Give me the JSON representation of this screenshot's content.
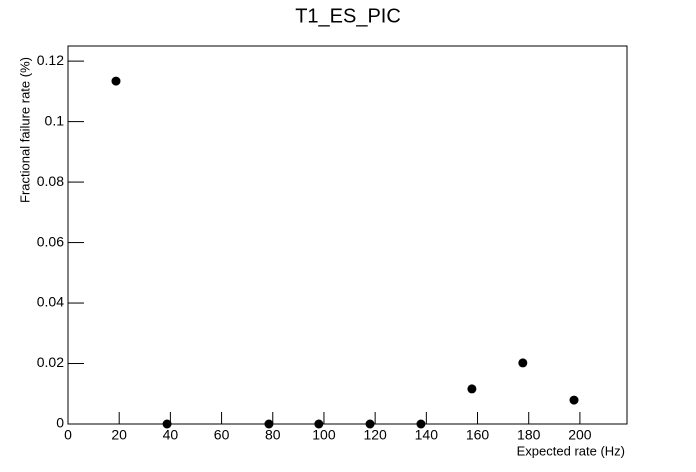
{
  "chart_data": {
    "type": "scatter",
    "title": "T1_ES_PIC",
    "x_label": "Expected rate (Hz)",
    "y_label": "Fractional failure rate (%)",
    "x": [
      18.75,
      38.7,
      78.5,
      98,
      118,
      137.9,
      157.8,
      177.7,
      197.7
    ],
    "values": [
      0.1134,
      0,
      0,
      0,
      0,
      0,
      0.0116,
      0.0202,
      0.0079
    ],
    "color": "#000000",
    "xlim": [
      0,
      218.4
    ],
    "ylim": [
      0,
      0.125
    ],
    "xticks": [
      0,
      20,
      40,
      60,
      80,
      100,
      120,
      140,
      160,
      180,
      200
    ],
    "yticks": [
      0,
      0.02,
      0.04,
      0.06,
      0.08,
      0.1,
      0.12
    ],
    "grid": false
  }
}
